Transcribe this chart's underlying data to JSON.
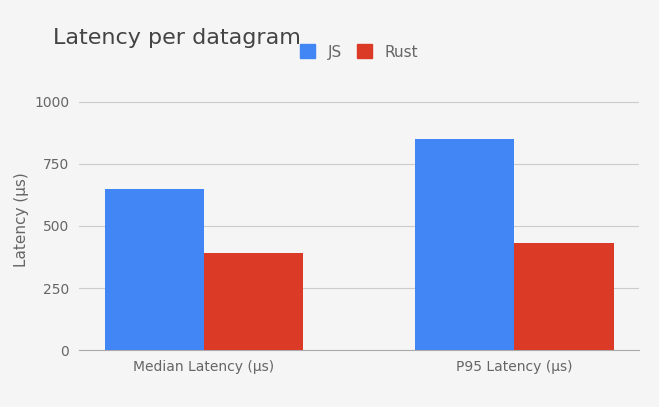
{
  "title": "Latency per datagram",
  "ylabel": "Latency (μs)",
  "categories": [
    "Median Latency (μs)",
    "P95 Latency (μs)"
  ],
  "series": {
    "JS": [
      650,
      850
    ],
    "Rust": [
      390,
      430
    ]
  },
  "js_color": "#4285f4",
  "rust_color": "#db3b26",
  "background_color": "#f5f5f5",
  "ylim": [
    0,
    1050
  ],
  "yticks": [
    0,
    250,
    500,
    750,
    1000
  ],
  "bar_width": 0.32,
  "title_fontsize": 16,
  "axis_fontsize": 11,
  "tick_fontsize": 10,
  "legend_fontsize": 11
}
